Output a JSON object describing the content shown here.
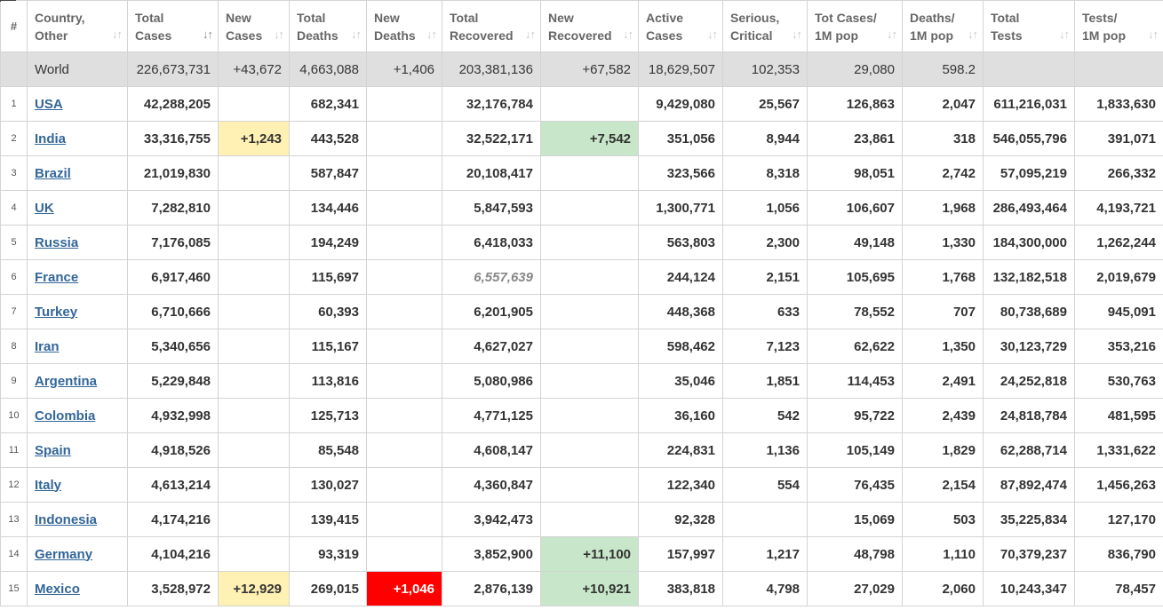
{
  "headers": [
    {
      "line1": "#",
      "line2": ""
    },
    {
      "line1": "Country,",
      "line2": "Other"
    },
    {
      "line1": "Total",
      "line2": "Cases"
    },
    {
      "line1": "New",
      "line2": "Cases"
    },
    {
      "line1": "Total",
      "line2": "Deaths"
    },
    {
      "line1": "New",
      "line2": "Deaths"
    },
    {
      "line1": "Total",
      "line2": "Recovered"
    },
    {
      "line1": "New",
      "line2": "Recovered"
    },
    {
      "line1": "Active",
      "line2": "Cases"
    },
    {
      "line1": "Serious,",
      "line2": "Critical"
    },
    {
      "line1": "Tot Cases/",
      "line2": "1M pop"
    },
    {
      "line1": "Deaths/",
      "line2": "1M pop"
    },
    {
      "line1": "Total",
      "line2": "Tests"
    },
    {
      "line1": "Tests/",
      "line2": "1M pop"
    }
  ],
  "sort_icon": "sort-arrows-icon",
  "world": {
    "country": "World",
    "total_cases": "226,673,731",
    "new_cases": "+43,672",
    "total_deaths": "4,663,088",
    "new_deaths": "+1,406",
    "total_recovered": "203,381,136",
    "new_recovered": "+67,582",
    "active_cases": "18,629,507",
    "serious": "102,353",
    "cases_per_m": "29,080",
    "deaths_per_m": "598.2",
    "total_tests": "",
    "tests_per_m": ""
  },
  "rows": [
    {
      "rank": "1",
      "country": "USA",
      "total_cases": "42,288,205",
      "new_cases": "",
      "total_deaths": "682,341",
      "new_deaths": "",
      "total_recovered": "32,176,784",
      "new_recovered": "",
      "active_cases": "9,429,080",
      "serious": "25,567",
      "cases_per_m": "126,863",
      "deaths_per_m": "2,047",
      "total_tests": "611,216,031",
      "tests_per_m": "1,833,630"
    },
    {
      "rank": "2",
      "country": "India",
      "total_cases": "33,316,755",
      "new_cases": "+1,243",
      "total_deaths": "443,528",
      "new_deaths": "",
      "total_recovered": "32,522,171",
      "new_recovered": "+7,542",
      "active_cases": "351,056",
      "serious": "8,944",
      "cases_per_m": "23,861",
      "deaths_per_m": "318",
      "total_tests": "546,055,796",
      "tests_per_m": "391,071"
    },
    {
      "rank": "3",
      "country": "Brazil",
      "total_cases": "21,019,830",
      "new_cases": "",
      "total_deaths": "587,847",
      "new_deaths": "",
      "total_recovered": "20,108,417",
      "new_recovered": "",
      "active_cases": "323,566",
      "serious": "8,318",
      "cases_per_m": "98,051",
      "deaths_per_m": "2,742",
      "total_tests": "57,095,219",
      "tests_per_m": "266,332"
    },
    {
      "rank": "4",
      "country": "UK",
      "total_cases": "7,282,810",
      "new_cases": "",
      "total_deaths": "134,446",
      "new_deaths": "",
      "total_recovered": "5,847,593",
      "new_recovered": "",
      "active_cases": "1,300,771",
      "serious": "1,056",
      "cases_per_m": "106,607",
      "deaths_per_m": "1,968",
      "total_tests": "286,493,464",
      "tests_per_m": "4,193,721"
    },
    {
      "rank": "5",
      "country": "Russia",
      "total_cases": "7,176,085",
      "new_cases": "",
      "total_deaths": "194,249",
      "new_deaths": "",
      "total_recovered": "6,418,033",
      "new_recovered": "",
      "active_cases": "563,803",
      "serious": "2,300",
      "cases_per_m": "49,148",
      "deaths_per_m": "1,330",
      "total_tests": "184,300,000",
      "tests_per_m": "1,262,244"
    },
    {
      "rank": "6",
      "country": "France",
      "total_cases": "6,917,460",
      "new_cases": "",
      "total_deaths": "115,697",
      "new_deaths": "",
      "total_recovered": "6,557,639",
      "new_recovered": "",
      "active_cases": "244,124",
      "serious": "2,151",
      "cases_per_m": "105,695",
      "deaths_per_m": "1,768",
      "total_tests": "132,182,518",
      "tests_per_m": "2,019,679"
    },
    {
      "rank": "7",
      "country": "Turkey",
      "total_cases": "6,710,666",
      "new_cases": "",
      "total_deaths": "60,393",
      "new_deaths": "",
      "total_recovered": "6,201,905",
      "new_recovered": "",
      "active_cases": "448,368",
      "serious": "633",
      "cases_per_m": "78,552",
      "deaths_per_m": "707",
      "total_tests": "80,738,689",
      "tests_per_m": "945,091"
    },
    {
      "rank": "8",
      "country": "Iran",
      "total_cases": "5,340,656",
      "new_cases": "",
      "total_deaths": "115,167",
      "new_deaths": "",
      "total_recovered": "4,627,027",
      "new_recovered": "",
      "active_cases": "598,462",
      "serious": "7,123",
      "cases_per_m": "62,622",
      "deaths_per_m": "1,350",
      "total_tests": "30,123,729",
      "tests_per_m": "353,216"
    },
    {
      "rank": "9",
      "country": "Argentina",
      "total_cases": "5,229,848",
      "new_cases": "",
      "total_deaths": "113,816",
      "new_deaths": "",
      "total_recovered": "5,080,986",
      "new_recovered": "",
      "active_cases": "35,046",
      "serious": "1,851",
      "cases_per_m": "114,453",
      "deaths_per_m": "2,491",
      "total_tests": "24,252,818",
      "tests_per_m": "530,763"
    },
    {
      "rank": "10",
      "country": "Colombia",
      "total_cases": "4,932,998",
      "new_cases": "",
      "total_deaths": "125,713",
      "new_deaths": "",
      "total_recovered": "4,771,125",
      "new_recovered": "",
      "active_cases": "36,160",
      "serious": "542",
      "cases_per_m": "95,722",
      "deaths_per_m": "2,439",
      "total_tests": "24,818,784",
      "tests_per_m": "481,595"
    },
    {
      "rank": "11",
      "country": "Spain",
      "total_cases": "4,918,526",
      "new_cases": "",
      "total_deaths": "85,548",
      "new_deaths": "",
      "total_recovered": "4,608,147",
      "new_recovered": "",
      "active_cases": "224,831",
      "serious": "1,136",
      "cases_per_m": "105,149",
      "deaths_per_m": "1,829",
      "total_tests": "62,288,714",
      "tests_per_m": "1,331,622"
    },
    {
      "rank": "12",
      "country": "Italy",
      "total_cases": "4,613,214",
      "new_cases": "",
      "total_deaths": "130,027",
      "new_deaths": "",
      "total_recovered": "4,360,847",
      "new_recovered": "",
      "active_cases": "122,340",
      "serious": "554",
      "cases_per_m": "76,435",
      "deaths_per_m": "2,154",
      "total_tests": "87,892,474",
      "tests_per_m": "1,456,263"
    },
    {
      "rank": "13",
      "country": "Indonesia",
      "total_cases": "4,174,216",
      "new_cases": "",
      "total_deaths": "139,415",
      "new_deaths": "",
      "total_recovered": "3,942,473",
      "new_recovered": "",
      "active_cases": "92,328",
      "serious": "",
      "cases_per_m": "15,069",
      "deaths_per_m": "503",
      "total_tests": "35,225,834",
      "tests_per_m": "127,170"
    },
    {
      "rank": "14",
      "country": "Germany",
      "total_cases": "4,104,216",
      "new_cases": "",
      "total_deaths": "93,319",
      "new_deaths": "",
      "total_recovered": "3,852,900",
      "new_recovered": "+11,100",
      "active_cases": "157,997",
      "serious": "1,217",
      "cases_per_m": "48,798",
      "deaths_per_m": "1,110",
      "total_tests": "70,379,237",
      "tests_per_m": "836,790"
    },
    {
      "rank": "15",
      "country": "Mexico",
      "total_cases": "3,528,972",
      "new_cases": "+12,929",
      "total_deaths": "269,015",
      "new_deaths": "+1,046",
      "total_recovered": "2,876,139",
      "new_recovered": "+10,921",
      "active_cases": "383,818",
      "serious": "4,798",
      "cases_per_m": "27,029",
      "deaths_per_m": "2,060",
      "total_tests": "10,243,347",
      "tests_per_m": "78,457"
    }
  ],
  "colors": {
    "new_cases_bg": "#fff0b3",
    "new_recovered_bg": "#c8e6c9",
    "new_deaths_bg": "#ff0000",
    "link": "#336699",
    "world_row_bg": "#dfdfdf"
  }
}
